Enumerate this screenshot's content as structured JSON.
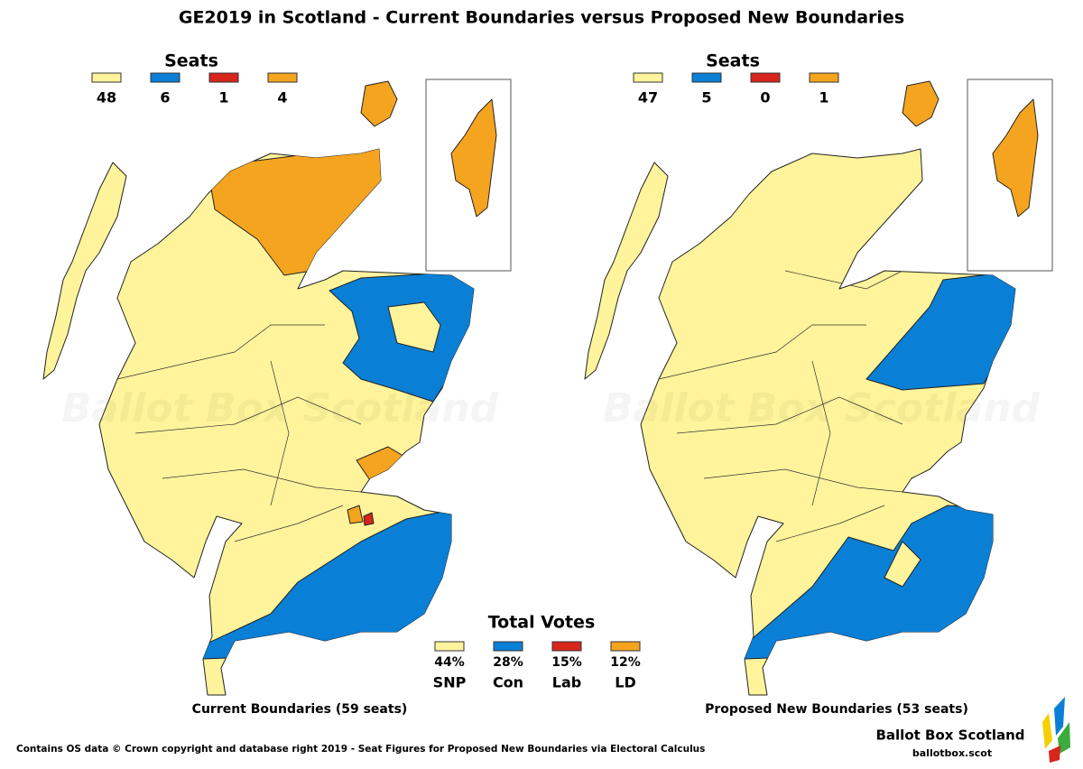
{
  "header": {
    "title": "GE2019 in Scotland - Current Boundaries versus Proposed New Boundaries"
  },
  "maps": [
    {
      "seats_title": "Seats",
      "seats": [
        48,
        6,
        1,
        4
      ],
      "caption": "Current Boundaries (59 seats)",
      "watermark": "Ballot Box Scotland"
    },
    {
      "seats_title": "Seats",
      "seats": [
        47,
        5,
        0,
        1
      ],
      "caption": "Proposed New Boundaries (53 seats)",
      "watermark": "Ballot Box Scotland"
    }
  ],
  "total_votes": {
    "title": "Total Votes",
    "items": [
      {
        "share": "44%",
        "party": "SNP"
      },
      {
        "share": "28%",
        "party": "Con"
      },
      {
        "share": "15%",
        "party": "Lab"
      },
      {
        "share": "12%",
        "party": "LD"
      }
    ]
  },
  "footer": {
    "credit": "Contains OS data © Crown copyright and database right 2019 - Seat Figures for Proposed New Boundaries via Electoral Calculus"
  },
  "brand": {
    "name": "Ballot Box Scotland",
    "url": "ballotbox.scot"
  }
}
